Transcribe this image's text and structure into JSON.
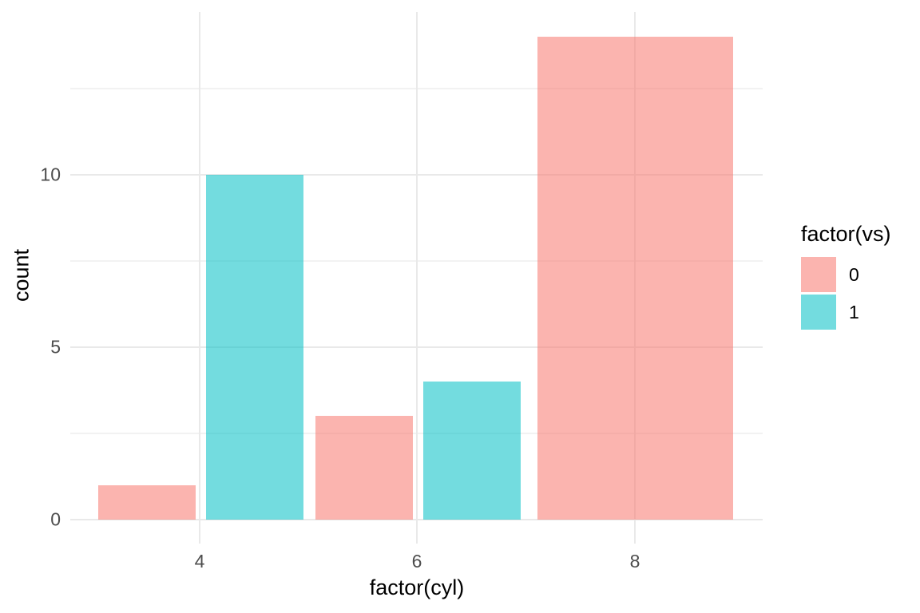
{
  "chart_data": {
    "type": "bar",
    "title": "",
    "xlabel": "factor(cyl)",
    "ylabel": "count",
    "categories": [
      "4",
      "6",
      "8"
    ],
    "series": [
      {
        "name": "0",
        "color": "#F8766D",
        "values": [
          1,
          3,
          14
        ]
      },
      {
        "name": "1",
        "color": "#00BFC4",
        "values": [
          10,
          4,
          0
        ]
      }
    ],
    "fill_alpha": 0.55,
    "position": "dodge",
    "ylim": [
      0,
      14.7
    ],
    "y_major_ticks": [
      0,
      5,
      10
    ],
    "y_minor_ticks": [
      2.5,
      7.5,
      12.5
    ],
    "grid": true,
    "legend": {
      "title": "factor(vs)",
      "position": "right",
      "entries": [
        {
          "label": "0",
          "color": "#F8766D"
        },
        {
          "label": "1",
          "color": "#00BFC4"
        }
      ]
    },
    "theme": {
      "background": "#FFFFFF",
      "grid_major_color": "#E9E9E9",
      "grid_minor_color": "#F2F2F2",
      "tick_label_color": "#4D4D4D",
      "title_color": "#000000"
    }
  }
}
